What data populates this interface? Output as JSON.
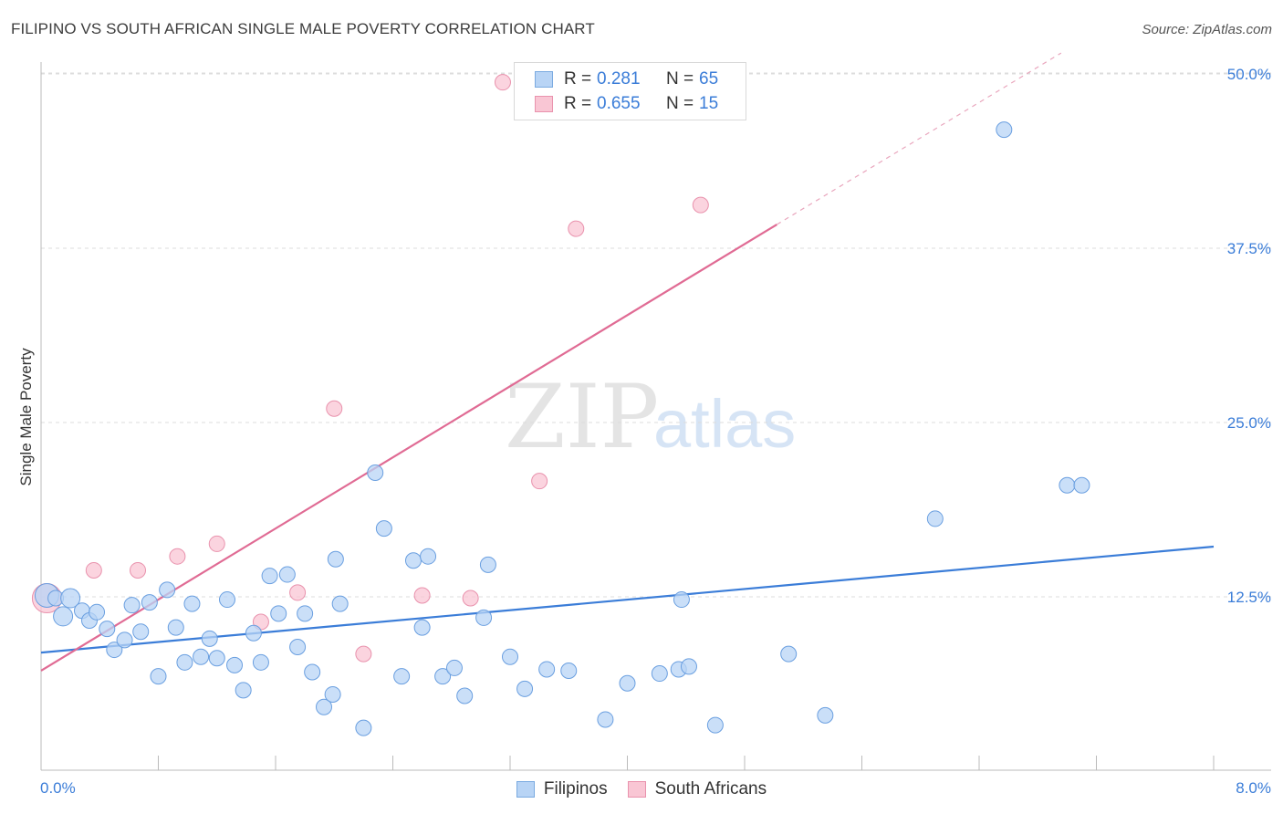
{
  "header": {
    "title": "FILIPINO VS SOUTH AFRICAN SINGLE MALE POVERTY CORRELATION CHART",
    "source": "Source: ZipAtlas.com"
  },
  "watermark": {
    "zip": "ZIP",
    "atlas": "atlas"
  },
  "legend": {
    "rows": [
      {
        "r_label": "R =",
        "r_value": "0.281",
        "n_label": "N =",
        "n_value": "65",
        "color": "#b8d4f5",
        "border": "#7aaae0"
      },
      {
        "r_label": "R =",
        "r_value": "0.655",
        "n_label": "N =",
        "n_value": "15",
        "color": "#f9c6d4",
        "border": "#e992ad"
      }
    ]
  },
  "bottom_legend": {
    "items": [
      {
        "label": "Filipinos",
        "color": "#b8d4f5",
        "border": "#7aaae0"
      },
      {
        "label": "South Africans",
        "color": "#f9c6d4",
        "border": "#e992ad"
      }
    ]
  },
  "chart_data": {
    "type": "scatter",
    "title": "FILIPINO VS SOUTH AFRICAN SINGLE MALE POVERTY CORRELATION CHART",
    "xlabel": "",
    "ylabel": "Single Male Poverty",
    "xlim": [
      0,
      8
    ],
    "ylim": [
      0,
      50
    ],
    "x_tick_labels": [
      "0.0%",
      "8.0%"
    ],
    "y_ticks": [
      12.5,
      25.0,
      37.5,
      50.0
    ],
    "y_tick_labels": [
      "12.5%",
      "25.0%",
      "37.5%",
      "50.0%"
    ],
    "grid": true,
    "colors": {
      "filipinos": "#3b7dd8",
      "south_africans": "#e06b94"
    },
    "series": [
      {
        "name": "Filipinos",
        "points": [
          [
            0.04,
            12.6
          ],
          [
            0.1,
            12.4
          ],
          [
            0.15,
            11.1
          ],
          [
            0.2,
            12.4
          ],
          [
            0.28,
            11.5
          ],
          [
            0.33,
            10.8
          ],
          [
            0.38,
            11.4
          ],
          [
            0.45,
            10.2
          ],
          [
            0.5,
            8.7
          ],
          [
            0.57,
            9.4
          ],
          [
            0.62,
            11.9
          ],
          [
            0.68,
            10.0
          ],
          [
            0.74,
            12.1
          ],
          [
            0.8,
            6.8
          ],
          [
            0.86,
            13.0
          ],
          [
            0.92,
            10.3
          ],
          [
            0.98,
            7.8
          ],
          [
            1.03,
            12.0
          ],
          [
            1.09,
            8.2
          ],
          [
            1.15,
            9.5
          ],
          [
            1.2,
            8.1
          ],
          [
            1.27,
            12.3
          ],
          [
            1.32,
            7.6
          ],
          [
            1.38,
            5.8
          ],
          [
            1.45,
            9.9
          ],
          [
            1.5,
            7.8
          ],
          [
            1.56,
            14.0
          ],
          [
            1.62,
            11.3
          ],
          [
            1.68,
            14.1
          ],
          [
            1.75,
            8.9
          ],
          [
            1.8,
            11.3
          ],
          [
            1.85,
            7.1
          ],
          [
            1.93,
            4.6
          ],
          [
            1.99,
            5.5
          ],
          [
            2.01,
            15.2
          ],
          [
            2.04,
            12.0
          ],
          [
            2.2,
            3.1
          ],
          [
            2.28,
            21.4
          ],
          [
            2.34,
            17.4
          ],
          [
            2.46,
            6.8
          ],
          [
            2.54,
            15.1
          ],
          [
            2.6,
            10.3
          ],
          [
            2.64,
            15.4
          ],
          [
            2.74,
            6.8
          ],
          [
            2.82,
            7.4
          ],
          [
            2.89,
            5.4
          ],
          [
            3.02,
            11.0
          ],
          [
            3.05,
            14.8
          ],
          [
            3.2,
            8.2
          ],
          [
            3.3,
            5.9
          ],
          [
            3.45,
            7.3
          ],
          [
            3.6,
            7.2
          ],
          [
            3.85,
            3.7
          ],
          [
            4.0,
            6.3
          ],
          [
            4.22,
            7.0
          ],
          [
            4.35,
            7.3
          ],
          [
            4.37,
            12.3
          ],
          [
            4.42,
            7.5
          ],
          [
            4.6,
            3.3
          ],
          [
            5.1,
            8.4
          ],
          [
            5.35,
            4.0
          ],
          [
            6.1,
            18.1
          ],
          [
            6.57,
            46.0
          ],
          [
            7.0,
            20.5
          ],
          [
            7.1,
            20.5
          ]
        ]
      },
      {
        "name": "South Africans",
        "points": [
          [
            0.04,
            12.4
          ],
          [
            0.36,
            14.4
          ],
          [
            0.66,
            14.4
          ],
          [
            0.93,
            15.4
          ],
          [
            1.2,
            16.3
          ],
          [
            1.5,
            10.7
          ],
          [
            1.75,
            12.8
          ],
          [
            2.0,
            26.0
          ],
          [
            2.2,
            8.4
          ],
          [
            2.6,
            12.6
          ],
          [
            2.93,
            12.4
          ],
          [
            3.15,
            49.4
          ],
          [
            3.4,
            20.8
          ],
          [
            3.65,
            38.9
          ],
          [
            4.5,
            40.6
          ]
        ]
      }
    ],
    "trendlines": [
      {
        "series": "Filipinos",
        "x": [
          0,
          8
        ],
        "y": [
          8.5,
          16.1
        ]
      },
      {
        "series": "South Africans",
        "x": [
          0,
          5.02
        ],
        "y": [
          7.2,
          39.2
        ],
        "dashed_x": [
          5.02,
          8
        ],
        "dashed_y": [
          39.2,
          58.1
        ]
      }
    ]
  }
}
